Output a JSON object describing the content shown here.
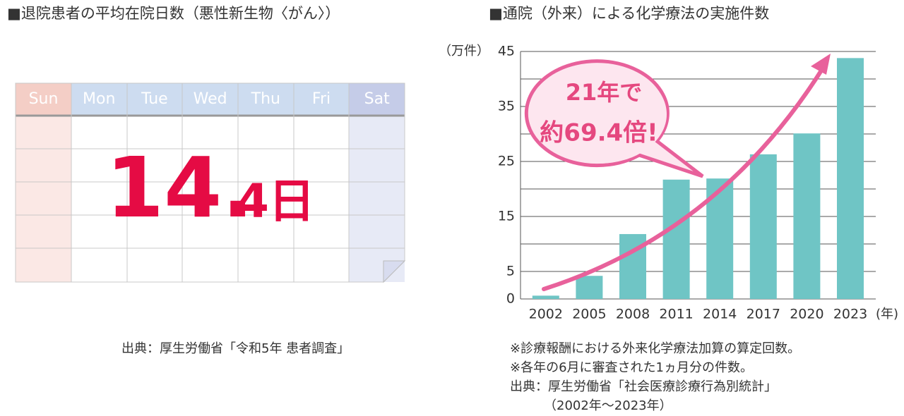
{
  "left": {
    "title": "■退院患者の平均在院日数（悪性新生物〈がん〉）",
    "days": [
      "Sun",
      "Mon",
      "Tue",
      "Wed",
      "Thu",
      "Fri",
      "Sat"
    ],
    "number": {
      "whole": "14.",
      "decimal": "4",
      "unit": "日"
    },
    "source": "出典：厚生労働省「令和5年 患者調査」"
  },
  "chart_data": {
    "type": "bar",
    "title": "■通院（外来）による化学療法の実施件数",
    "y_label": "（万件）",
    "x_label": "(年)",
    "categories": [
      "2002",
      "2005",
      "2008",
      "2011",
      "2014",
      "2017",
      "2020",
      "2023"
    ],
    "values": [
      0.6,
      4.2,
      11.8,
      21.7,
      21.9,
      26.3,
      30.1,
      43.8
    ],
    "color": "#6fc5c5",
    "ylim": [
      0,
      45
    ],
    "yticks": [
      0,
      5,
      15,
      25,
      35,
      45
    ],
    "ygrid": [
      5,
      10,
      15,
      20,
      25,
      30,
      35,
      40,
      45
    ],
    "annotation": [
      "21年で",
      "約69.4倍!"
    ],
    "notes": [
      "※診療報酬における外来化学療法加算の算定回数。",
      "※各年の6月に審査された1ヵ月分の件数。",
      "出典：厚生労働省「社会医療診療行為別統計」",
      "（2002年〜2023年）"
    ]
  }
}
